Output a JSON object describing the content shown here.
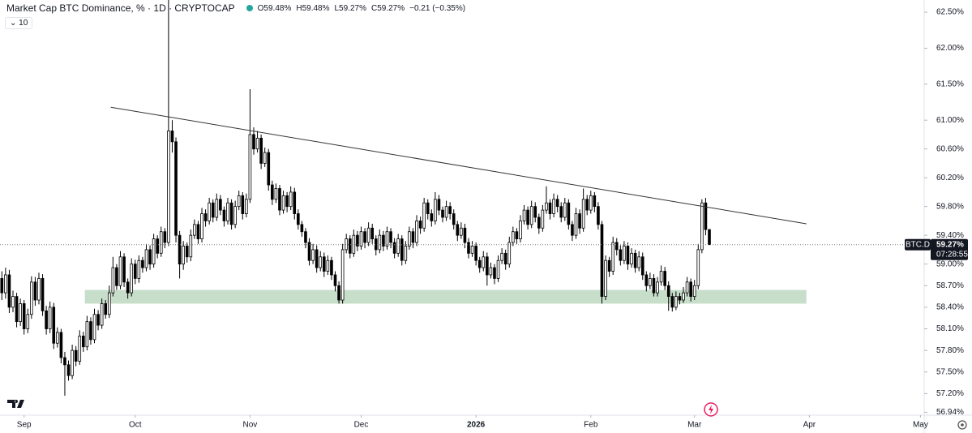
{
  "chart_data": {
    "type": "candlestick",
    "title": "Market Cap BTC Dominance, % · 1D · CRYPTOCAP",
    "ohlc_labels": [
      "O59.48%",
      "H59.48%",
      "L59.27%",
      "C59.27%",
      "−0.21 (−0.35%)"
    ],
    "indicator": "10",
    "symbol": "BTC.D",
    "last_price": {
      "value": 59.27,
      "label": "59.27%"
    },
    "countdown": "07:28:55",
    "up_color": "#ffffff",
    "down_color": "#000000",
    "border_color": "#000000",
    "zone_color": "#b9d6bd",
    "trendline_color": "#333333",
    "xlim": [
      -0.5,
      249
    ],
    "ylim": [
      56.9,
      62.67
    ],
    "xticks": [
      {
        "value": 6,
        "label": "Sep"
      },
      {
        "value": 36,
        "label": "Oct"
      },
      {
        "value": 67,
        "label": "Nov"
      },
      {
        "value": 97,
        "label": "Dec"
      },
      {
        "value": 128,
        "label": "2026"
      },
      {
        "value": 159,
        "label": "Feb"
      },
      {
        "value": 187,
        "label": "Mar"
      },
      {
        "value": 218,
        "label": "Apr"
      },
      {
        "value": 248,
        "label": "May"
      }
    ],
    "yticks": [
      {
        "value": 62.5,
        "label": "62.50%"
      },
      {
        "value": 62.0,
        "label": "62.00%"
      },
      {
        "value": 61.5,
        "label": "61.50%"
      },
      {
        "value": 61.0,
        "label": "61.00%"
      },
      {
        "value": 60.6,
        "label": "60.60%"
      },
      {
        "value": 60.2,
        "label": "60.20%"
      },
      {
        "value": 59.8,
        "label": "59.80%"
      },
      {
        "value": 59.4,
        "label": "59.40%"
      },
      {
        "value": 59.0,
        "label": "59.00%"
      },
      {
        "value": 58.7,
        "label": "58.70%"
      },
      {
        "value": 58.4,
        "label": "58.40%"
      },
      {
        "value": 58.1,
        "label": "58.10%"
      },
      {
        "value": 57.8,
        "label": "57.80%"
      },
      {
        "value": 57.5,
        "label": "57.50%"
      },
      {
        "value": 57.2,
        "label": "57.20%"
      },
      {
        "value": 56.94,
        "label": "56.94%"
      }
    ],
    "trendline": {
      "x": [
        29.4,
        217.2
      ],
      "y": [
        61.18,
        59.56
      ]
    },
    "zone": {
      "x": [
        22.4,
        217.2
      ],
      "y": [
        58.45,
        58.64
      ]
    },
    "candles": [
      [
        58.8,
        58.9,
        58.5,
        58.6
      ],
      [
        58.6,
        58.95,
        58.52,
        58.85
      ],
      [
        58.85,
        58.92,
        58.32,
        58.4
      ],
      [
        58.4,
        58.63,
        58.33,
        58.55
      ],
      [
        58.55,
        58.6,
        58.12,
        58.2
      ],
      [
        58.2,
        58.52,
        58.14,
        58.45
      ],
      [
        58.45,
        58.5,
        58.02,
        58.1
      ],
      [
        58.1,
        58.38,
        58.04,
        58.3
      ],
      [
        58.3,
        58.83,
        58.24,
        58.75
      ],
      [
        58.75,
        58.82,
        58.42,
        58.5
      ],
      [
        58.5,
        58.88,
        58.44,
        58.8
      ],
      [
        58.8,
        58.86,
        58.28,
        58.35
      ],
      [
        58.35,
        58.42,
        58.02,
        58.1
      ],
      [
        58.1,
        58.48,
        58.04,
        58.4
      ],
      [
        58.4,
        58.46,
        57.82,
        57.9
      ],
      [
        57.9,
        58.12,
        57.84,
        58.05
      ],
      [
        58.05,
        58.1,
        57.62,
        57.7
      ],
      [
        57.7,
        57.78,
        57.17,
        57.6
      ],
      [
        57.6,
        57.66,
        57.38,
        57.45
      ],
      [
        57.45,
        57.88,
        57.4,
        57.8
      ],
      [
        57.8,
        57.86,
        57.58,
        57.65
      ],
      [
        57.65,
        58.08,
        57.6,
        58.0
      ],
      [
        58.0,
        58.06,
        57.78,
        57.85
      ],
      [
        57.85,
        58.28,
        57.8,
        58.2
      ],
      [
        58.2,
        58.26,
        57.88,
        57.95
      ],
      [
        57.95,
        58.38,
        57.9,
        58.3
      ],
      [
        58.3,
        58.36,
        58.08,
        58.15
      ],
      [
        58.15,
        58.52,
        58.1,
        58.45
      ],
      [
        58.45,
        58.5,
        58.24,
        58.3
      ],
      [
        58.3,
        58.7,
        58.25,
        58.6
      ],
      [
        58.6,
        59.1,
        58.55,
        58.95
      ],
      [
        58.95,
        59.0,
        58.64,
        58.7
      ],
      [
        58.7,
        59.18,
        58.65,
        59.1
      ],
      [
        59.1,
        59.15,
        58.68,
        58.75
      ],
      [
        58.75,
        58.8,
        58.52,
        58.6
      ],
      [
        58.6,
        59.08,
        58.55,
        59.0
      ],
      [
        59.0,
        59.06,
        58.72,
        58.8
      ],
      [
        58.8,
        59.12,
        58.74,
        59.05
      ],
      [
        59.05,
        59.1,
        58.88,
        58.95
      ],
      [
        58.95,
        59.28,
        58.9,
        59.2
      ],
      [
        59.2,
        59.26,
        58.92,
        59.0
      ],
      [
        59.0,
        59.42,
        58.95,
        59.35
      ],
      [
        59.35,
        59.4,
        59.08,
        59.15
      ],
      [
        59.15,
        59.52,
        59.1,
        59.45
      ],
      [
        59.45,
        59.5,
        59.22,
        59.3
      ],
      [
        59.3,
        62.9,
        59.25,
        60.85
      ],
      [
        60.85,
        61.0,
        60.55,
        60.7
      ],
      [
        60.7,
        60.76,
        59.3,
        59.4
      ],
      [
        59.4,
        59.46,
        58.8,
        59.0
      ],
      [
        59.0,
        59.32,
        58.92,
        59.25
      ],
      [
        59.25,
        59.3,
        59.02,
        59.1
      ],
      [
        59.1,
        59.48,
        59.04,
        59.4
      ],
      [
        59.4,
        59.62,
        59.35,
        59.55
      ],
      [
        59.55,
        59.6,
        59.28,
        59.35
      ],
      [
        59.35,
        59.78,
        59.3,
        59.7
      ],
      [
        59.7,
        59.76,
        59.52,
        59.6
      ],
      [
        59.6,
        59.92,
        59.55,
        59.85
      ],
      [
        59.85,
        59.9,
        59.58,
        59.65
      ],
      [
        59.65,
        59.98,
        59.6,
        59.9
      ],
      [
        59.9,
        59.96,
        59.68,
        59.75
      ],
      [
        59.75,
        59.8,
        59.52,
        59.6
      ],
      [
        59.6,
        59.92,
        59.55,
        59.85
      ],
      [
        59.85,
        59.9,
        59.48,
        59.55
      ],
      [
        59.55,
        59.88,
        59.5,
        59.8
      ],
      [
        59.8,
        60.02,
        59.75,
        59.95
      ],
      [
        59.95,
        60.0,
        59.62,
        59.7
      ],
      [
        59.7,
        59.98,
        59.65,
        59.9
      ],
      [
        59.9,
        61.43,
        59.85,
        60.8
      ],
      [
        60.8,
        60.9,
        60.52,
        60.6
      ],
      [
        60.6,
        60.85,
        60.55,
        60.75
      ],
      [
        60.75,
        60.8,
        60.32,
        60.4
      ],
      [
        60.4,
        60.62,
        60.35,
        60.55
      ],
      [
        60.55,
        60.6,
        60.02,
        60.1
      ],
      [
        60.1,
        60.16,
        59.82,
        59.9
      ],
      [
        59.9,
        60.12,
        59.85,
        60.05
      ],
      [
        60.05,
        60.1,
        59.68,
        59.75
      ],
      [
        59.75,
        60.02,
        59.7,
        59.95
      ],
      [
        59.95,
        60.0,
        59.72,
        59.8
      ],
      [
        59.8,
        60.08,
        59.75,
        60.0
      ],
      [
        60.0,
        60.06,
        59.62,
        59.7
      ],
      [
        59.7,
        59.76,
        59.48,
        59.55
      ],
      [
        59.55,
        59.6,
        59.38,
        59.45
      ],
      [
        59.45,
        59.5,
        59.22,
        59.3
      ],
      [
        59.3,
        59.36,
        58.98,
        59.05
      ],
      [
        59.05,
        59.28,
        59.0,
        59.2
      ],
      [
        59.2,
        59.26,
        58.88,
        58.95
      ],
      [
        58.95,
        59.18,
        58.9,
        59.1
      ],
      [
        59.1,
        59.16,
        58.82,
        58.9
      ],
      [
        58.9,
        59.12,
        58.85,
        59.05
      ],
      [
        59.05,
        59.1,
        58.78,
        58.85
      ],
      [
        58.85,
        58.9,
        58.62,
        58.7
      ],
      [
        58.7,
        58.76,
        58.45,
        58.5
      ],
      [
        58.5,
        59.28,
        58.45,
        59.2
      ],
      [
        59.2,
        59.42,
        59.15,
        59.35
      ],
      [
        59.35,
        59.4,
        59.08,
        59.15
      ],
      [
        59.15,
        59.48,
        59.1,
        59.4
      ],
      [
        59.4,
        59.46,
        59.18,
        59.25
      ],
      [
        59.25,
        59.52,
        59.2,
        59.45
      ],
      [
        59.45,
        59.5,
        59.22,
        59.3
      ],
      [
        59.3,
        59.58,
        59.25,
        59.5
      ],
      [
        59.5,
        59.56,
        59.28,
        59.35
      ],
      [
        59.35,
        59.4,
        59.12,
        59.2
      ],
      [
        59.2,
        59.48,
        59.15,
        59.4
      ],
      [
        59.4,
        59.46,
        59.18,
        59.25
      ],
      [
        59.25,
        59.52,
        59.2,
        59.45
      ],
      [
        59.45,
        59.5,
        59.22,
        59.3
      ],
      [
        59.3,
        59.36,
        59.08,
        59.15
      ],
      [
        59.15,
        59.42,
        59.1,
        59.35
      ],
      [
        59.35,
        59.4,
        58.98,
        59.05
      ],
      [
        59.05,
        59.32,
        59.0,
        59.25
      ],
      [
        59.25,
        59.52,
        59.2,
        59.45
      ],
      [
        59.45,
        59.5,
        59.22,
        59.3
      ],
      [
        59.3,
        59.68,
        59.25,
        59.6
      ],
      [
        59.6,
        59.66,
        59.42,
        59.5
      ],
      [
        59.5,
        59.92,
        59.45,
        59.85
      ],
      [
        59.85,
        59.9,
        59.62,
        59.7
      ],
      [
        59.7,
        59.76,
        59.52,
        59.6
      ],
      [
        59.6,
        60.0,
        59.55,
        59.9
      ],
      [
        59.9,
        59.96,
        59.68,
        59.75
      ],
      [
        59.75,
        59.8,
        59.58,
        59.65
      ],
      [
        59.65,
        59.88,
        59.6,
        59.8
      ],
      [
        59.8,
        59.86,
        59.62,
        59.7
      ],
      [
        59.7,
        59.76,
        59.48,
        59.55
      ],
      [
        59.55,
        59.6,
        59.32,
        59.4
      ],
      [
        59.4,
        59.58,
        59.35,
        59.5
      ],
      [
        59.5,
        59.56,
        59.22,
        59.3
      ],
      [
        59.3,
        59.36,
        59.08,
        59.15
      ],
      [
        59.15,
        59.32,
        59.1,
        59.25
      ],
      [
        59.25,
        59.3,
        58.98,
        59.05
      ],
      [
        59.05,
        59.1,
        58.88,
        58.95
      ],
      [
        58.95,
        59.18,
        58.9,
        59.1
      ],
      [
        59.1,
        59.16,
        58.7,
        58.85
      ],
      [
        58.85,
        59.02,
        58.8,
        58.95
      ],
      [
        58.95,
        59.0,
        58.72,
        58.8
      ],
      [
        58.8,
        59.12,
        58.75,
        59.05
      ],
      [
        59.05,
        59.22,
        59.0,
        59.15
      ],
      [
        59.15,
        59.2,
        58.92,
        59.0
      ],
      [
        59.0,
        59.38,
        58.95,
        59.3
      ],
      [
        59.3,
        59.52,
        59.25,
        59.45
      ],
      [
        59.45,
        59.5,
        59.28,
        59.35
      ],
      [
        59.35,
        59.68,
        59.3,
        59.6
      ],
      [
        59.6,
        59.82,
        59.55,
        59.75
      ],
      [
        59.75,
        59.8,
        59.48,
        59.55
      ],
      [
        59.55,
        59.88,
        59.5,
        59.8
      ],
      [
        59.8,
        59.86,
        59.58,
        59.65
      ],
      [
        59.65,
        59.7,
        59.42,
        59.5
      ],
      [
        59.5,
        59.82,
        59.45,
        59.75
      ],
      [
        59.75,
        60.08,
        59.7,
        59.85
      ],
      [
        59.85,
        59.9,
        59.62,
        59.7
      ],
      [
        59.7,
        59.98,
        59.65,
        59.9
      ],
      [
        59.9,
        59.96,
        59.72,
        59.8
      ],
      [
        59.8,
        59.86,
        59.58,
        59.65
      ],
      [
        59.65,
        59.92,
        59.6,
        59.85
      ],
      [
        59.85,
        59.9,
        59.48,
        59.55
      ],
      [
        59.55,
        59.6,
        59.32,
        59.4
      ],
      [
        59.4,
        59.78,
        59.35,
        59.7
      ],
      [
        59.7,
        59.76,
        59.42,
        59.5
      ],
      [
        59.5,
        60.05,
        59.45,
        59.9
      ],
      [
        59.9,
        59.96,
        59.68,
        59.75
      ],
      [
        59.75,
        60.02,
        59.7,
        59.95
      ],
      [
        59.95,
        60.0,
        59.72,
        59.8
      ],
      [
        59.8,
        59.86,
        59.48,
        59.55
      ],
      [
        59.55,
        59.6,
        58.45,
        58.55
      ],
      [
        58.55,
        59.12,
        58.5,
        59.05
      ],
      [
        59.05,
        59.1,
        58.82,
        58.9
      ],
      [
        58.9,
        59.38,
        58.85,
        59.3
      ],
      [
        59.3,
        59.36,
        59.12,
        59.2
      ],
      [
        59.2,
        59.26,
        58.98,
        59.05
      ],
      [
        59.05,
        59.32,
        59.0,
        59.25
      ],
      [
        59.25,
        59.3,
        58.92,
        59.0
      ],
      [
        59.0,
        59.22,
        58.95,
        59.15
      ],
      [
        59.15,
        59.2,
        58.88,
        58.95
      ],
      [
        58.95,
        59.18,
        58.9,
        59.1
      ],
      [
        59.1,
        59.16,
        58.78,
        58.85
      ],
      [
        58.85,
        58.9,
        58.62,
        58.7
      ],
      [
        58.7,
        58.88,
        58.65,
        58.8
      ],
      [
        58.8,
        58.86,
        58.55,
        58.6
      ],
      [
        58.6,
        58.82,
        58.55,
        58.75
      ],
      [
        58.75,
        58.98,
        58.7,
        58.9
      ],
      [
        58.9,
        58.96,
        58.64,
        58.7
      ],
      [
        58.7,
        58.76,
        58.35,
        58.55
      ],
      [
        58.55,
        58.6,
        58.34,
        58.4
      ],
      [
        58.4,
        58.62,
        58.36,
        58.55
      ],
      [
        58.55,
        58.6,
        58.44,
        58.5
      ],
      [
        58.5,
        58.68,
        58.46,
        58.6
      ],
      [
        58.6,
        58.82,
        58.55,
        58.75
      ],
      [
        58.75,
        58.8,
        58.48,
        58.55
      ],
      [
        58.55,
        58.78,
        58.5,
        58.7
      ],
      [
        58.7,
        59.28,
        58.65,
        59.2
      ],
      [
        59.2,
        59.9,
        59.15,
        59.85
      ],
      [
        59.85,
        59.92,
        59.4,
        59.48
      ],
      [
        59.48,
        59.48,
        59.27,
        59.27
      ]
    ]
  }
}
